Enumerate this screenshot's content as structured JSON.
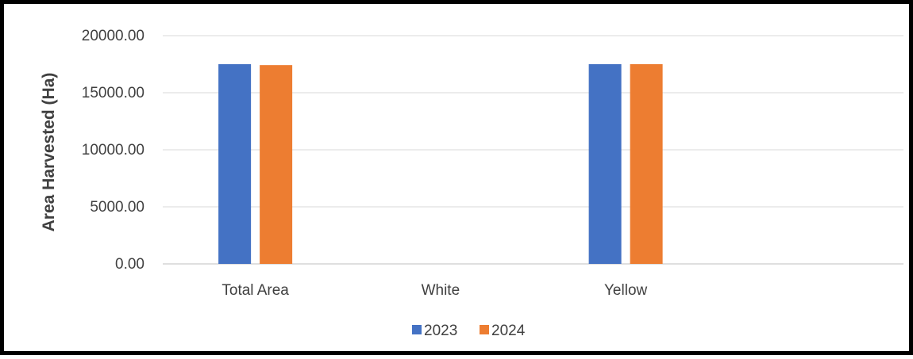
{
  "chart_data": {
    "type": "bar",
    "title": "",
    "xlabel": "",
    "ylabel": "Area Harvested (Ha)",
    "categories": [
      "Total Area",
      "White",
      "Yellow",
      ""
    ],
    "series": [
      {
        "name": "2023",
        "color": "#4472C4",
        "values": [
          17500,
          0,
          17500,
          0
        ]
      },
      {
        "name": "2024",
        "color": "#ED7D31",
        "values": [
          17420,
          0,
          17500,
          0
        ]
      }
    ],
    "ylim": [
      0,
      20000
    ],
    "yticks": [
      "0.00",
      "5000.00",
      "10000.00",
      "15000.00",
      "20000.00"
    ],
    "grid": true,
    "legend_position": "bottom"
  }
}
